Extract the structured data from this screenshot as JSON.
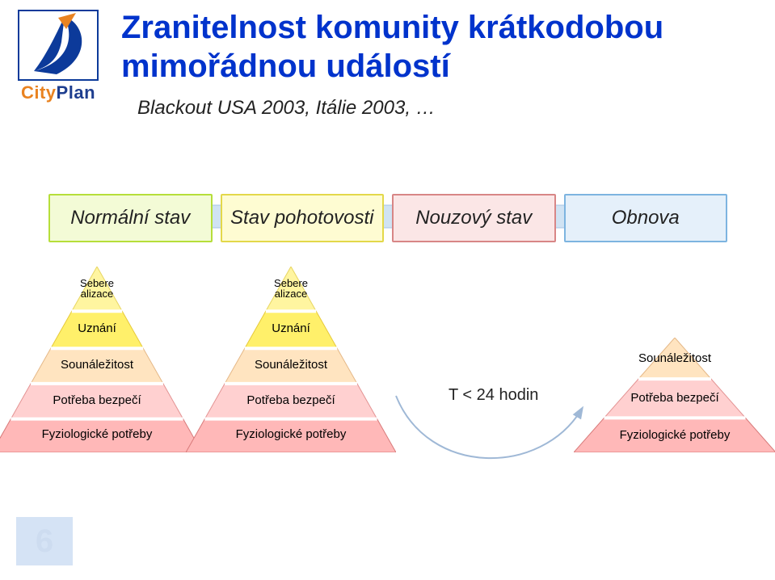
{
  "logo": {
    "brand_left": "City",
    "brand_right": "Plan",
    "swoosh_color": "#0c3a9a",
    "accent_color": "#e98321",
    "box_stroke": "#0c3a9a"
  },
  "title": {
    "line1": "Zranitelnost komunity krátkodobou",
    "line2": "mimořádnou událostí",
    "color": "#0033cc",
    "fontsize": 40
  },
  "subtitle": "Blackout USA 2003, Itálie 2003, …",
  "stages": [
    {
      "label": "Normální stav",
      "bg": "#f3fbd6",
      "border": "#b6de3a"
    },
    {
      "label": "Stav pohotovosti",
      "bg": "#fefcd2",
      "border": "#e3d84a"
    },
    {
      "label": "Nouzový stav",
      "bg": "#fbe6e6",
      "border": "#d88686"
    },
    {
      "label": "Obnova",
      "bg": "#e5f0fa",
      "border": "#7db4e0"
    }
  ],
  "bar_arrow": {
    "fill": "#d0e3f3",
    "stroke": "#a7c6e3"
  },
  "pyramid_levels": {
    "top": "Sebere\nalizace",
    "l2": "Uznání",
    "l3": "Sounáležitost",
    "l4": "Potřeba bezpečí",
    "l5": "Fyziologické potřeby"
  },
  "pyramid_colors": {
    "top_fill": "#fff5a0",
    "top_edge": "#e7d560",
    "l2_fill": "#fff06a",
    "l2_edge": "#e6c93a",
    "l3_fill": "#ffe4c0",
    "l3_edge": "#e5b887",
    "l4_fill": "#ffd0d0",
    "l4_edge": "#e39393",
    "l5_fill": "#ffb8b8",
    "l5_edge": "#d87a7a",
    "divider": "#ffffff"
  },
  "recovery_pyramid": {
    "l3": "Sounáležitost",
    "l4": "Potřeba bezpečí",
    "l5": "Fyziologické potřeby"
  },
  "transition": {
    "label": "T < 24 hodin",
    "arc_stroke": "#9fb8d6",
    "arc_width": 2
  },
  "page_watermark": "6"
}
